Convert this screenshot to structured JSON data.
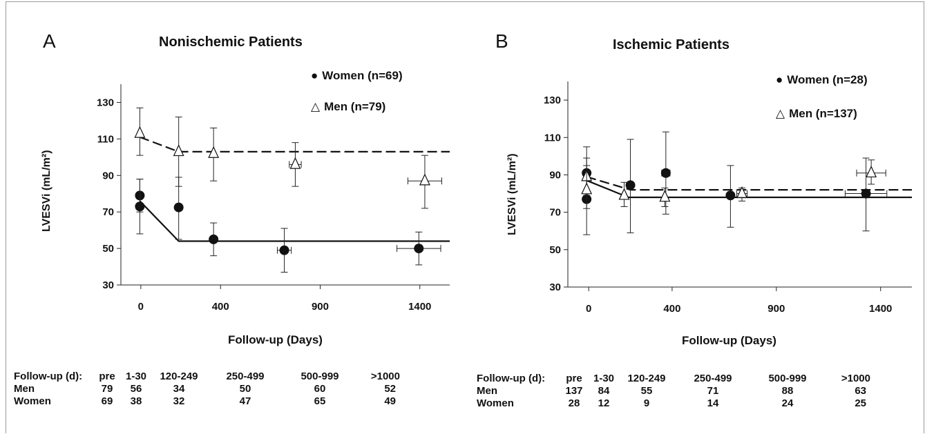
{
  "chart_data": [
    {
      "type": "scatter",
      "panel_letter": "A",
      "title": "Nonischemic Patients",
      "xlabel": "Follow-up (Days)",
      "ylabel": "LVESVi (mL/m²)",
      "xlim": [
        -100,
        1550
      ],
      "ylim": [
        30,
        140
      ],
      "x_ticks": [
        0,
        400,
        900,
        1400
      ],
      "y_ticks": [
        30,
        50,
        70,
        90,
        110,
        130
      ],
      "legend_placement": "top-right",
      "series": [
        {
          "name": "Women (n=69)",
          "marker": "filled-circle",
          "color": "#111111",
          "points": [
            {
              "x": -5,
              "y": 79,
              "ylo": 70,
              "yhi": 88,
              "xerr": 0
            },
            {
              "x": -5,
              "y": 73,
              "ylo": 58,
              "yhi": 88,
              "xerr": 0
            },
            {
              "x": 190,
              "y": 72.5,
              "ylo": 55,
              "yhi": 89,
              "xerr": 0
            },
            {
              "x": 365,
              "y": 55,
              "ylo": 46,
              "yhi": 64,
              "xerr": 0
            },
            {
              "x": 720,
              "y": 49,
              "ylo": 37,
              "yhi": 61,
              "xerr": 35
            },
            {
              "x": 1395,
              "y": 50,
              "ylo": 41,
              "yhi": 59,
              "xerr": 110
            }
          ],
          "fit_line": [
            [
              -5,
              76
            ],
            [
              190,
              54
            ],
            [
              1550,
              54
            ]
          ],
          "fit_style": "solid"
        },
        {
          "name": "Men (n=79)",
          "marker": "open-triangle",
          "color": "#111111",
          "points": [
            {
              "x": -5,
              "y": 113,
              "ylo": 101,
              "yhi": 127,
              "xerr": 0
            },
            {
              "x": 190,
              "y": 103,
              "ylo": 84,
              "yhi": 122,
              "xerr": 0
            },
            {
              "x": 365,
              "y": 102,
              "ylo": 87,
              "yhi": 116,
              "xerr": 0
            },
            {
              "x": 775,
              "y": 96,
              "ylo": 84,
              "yhi": 108,
              "xerr": 30
            },
            {
              "x": 1425,
              "y": 87,
              "ylo": 72,
              "yhi": 101,
              "xerr": 85
            }
          ],
          "fit_line": [
            [
              -5,
              111
            ],
            [
              190,
              103
            ],
            [
              1550,
              103
            ]
          ],
          "fit_style": "dashed"
        }
      ],
      "followup_table": {
        "header": [
          "Follow-up (d):",
          "pre",
          "1-30",
          "120-249",
          "250-499",
          "500-999",
          ">1000"
        ],
        "rows": [
          [
            "Men",
            "79",
            "56",
            "34",
            "50",
            "60",
            "52"
          ],
          [
            "Women",
            "69",
            "38",
            "32",
            "47",
            "65",
            "49"
          ]
        ]
      }
    },
    {
      "type": "scatter",
      "panel_letter": "B",
      "title": "Ischemic Patients",
      "xlabel": "Follow-up (Days)",
      "ylabel": "LVESVi (mL/m²)",
      "xlim": [
        -100,
        1550
      ],
      "ylim": [
        30,
        140
      ],
      "x_ticks": [
        0,
        400,
        900,
        1400
      ],
      "y_ticks": [
        30,
        50,
        70,
        90,
        110,
        130
      ],
      "legend_placement": "top-right",
      "series": [
        {
          "name": "Women (n=28)",
          "marker": "filled-circle",
          "color": "#111111",
          "points": [
            {
              "x": -10,
              "y": 91,
              "ylo": 76,
              "yhi": 105,
              "xerr": 0
            },
            {
              "x": -10,
              "y": 77,
              "ylo": 58,
              "yhi": 95,
              "xerr": 0
            },
            {
              "x": 200,
              "y": 84.5,
              "ylo": 59,
              "yhi": 109,
              "xerr": 0
            },
            {
              "x": 370,
              "y": 91,
              "ylo": 69,
              "yhi": 113,
              "xerr": 20
            },
            {
              "x": 680,
              "y": 79,
              "ylo": 62,
              "yhi": 95,
              "xerr": 0
            },
            {
              "x": 1330,
              "y": 80,
              "ylo": 60,
              "yhi": 99,
              "xerr": 100
            }
          ],
          "fit_line": [
            [
              -10,
              87
            ],
            [
              190,
              78
            ],
            [
              1550,
              78
            ]
          ],
          "fit_style": "solid"
        },
        {
          "name": "Men (n=137)",
          "marker": "open-triangle",
          "color": "#111111",
          "points": [
            {
              "x": -10,
              "y": 89,
              "ylo": 79,
              "yhi": 99,
              "xerr": 0
            },
            {
              "x": -10,
              "y": 82,
              "ylo": 72,
              "yhi": 92,
              "xerr": 0
            },
            {
              "x": 170,
              "y": 79,
              "ylo": 73,
              "yhi": 86,
              "xerr": 0
            },
            {
              "x": 365,
              "y": 78,
              "ylo": 73,
              "yhi": 83,
              "xerr": 0
            },
            {
              "x": 735,
              "y": 80,
              "ylo": 76,
              "yhi": 83,
              "xerr": 25
            },
            {
              "x": 1355,
              "y": 91,
              "ylo": 85,
              "yhi": 98,
              "xerr": 70
            }
          ],
          "fit_line": [
            [
              -10,
              89
            ],
            [
              200,
              82
            ],
            [
              1550,
              82
            ]
          ],
          "fit_style": "dashed"
        }
      ],
      "followup_table": {
        "header": [
          "Follow-up (d):",
          "pre",
          "1-30",
          "120-249",
          "250-499",
          "500-999",
          ">1000"
        ],
        "rows": [
          [
            "Men",
            "137",
            "84",
            "55",
            "71",
            "88",
            "63"
          ],
          [
            "Women",
            "28",
            "12",
            "9",
            "14",
            "24",
            "25"
          ]
        ]
      }
    }
  ]
}
